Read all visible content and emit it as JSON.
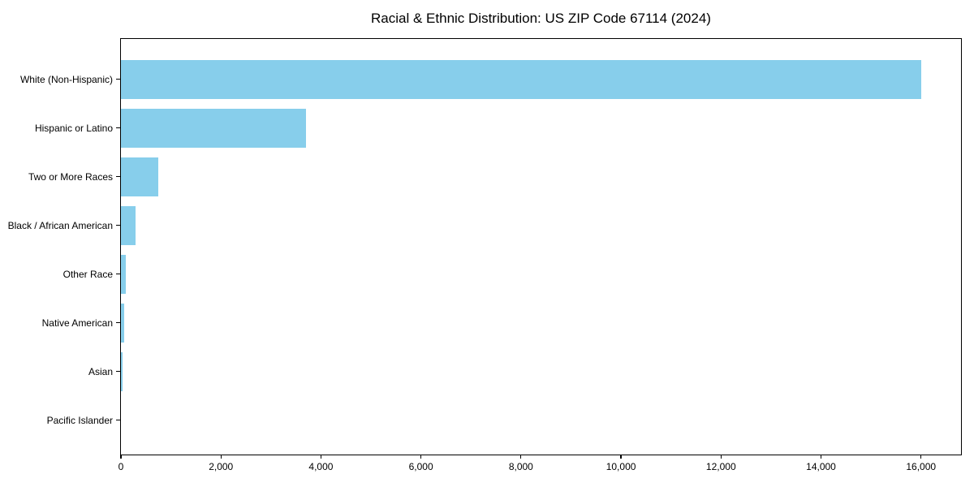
{
  "chart_data": {
    "type": "bar",
    "orientation": "horizontal",
    "title": "Racial & Ethnic Distribution: US ZIP Code 67114 (2024)",
    "categories": [
      "White (Non-Hispanic)",
      "Hispanic or Latino",
      "Two or More Races",
      "Black / African American",
      "Other Race",
      "Native American",
      "Asian",
      "Pacific Islander"
    ],
    "values": [
      16000,
      3700,
      740,
      300,
      95,
      70,
      40,
      0
    ],
    "xlabel": "",
    "ylabel": "",
    "xlim": [
      0,
      16800
    ],
    "x_ticks": [
      0,
      2000,
      4000,
      6000,
      8000,
      10000,
      12000,
      14000,
      16000
    ],
    "x_tick_labels": [
      "0",
      "2,000",
      "4,000",
      "6,000",
      "8,000",
      "10,000",
      "12,000",
      "14,000",
      "16,000"
    ],
    "bar_color": "#87CEEB",
    "axis_color": "#000000",
    "text_color": "#000000",
    "background": "#FFFFFF",
    "grid": false,
    "legend": "none"
  }
}
